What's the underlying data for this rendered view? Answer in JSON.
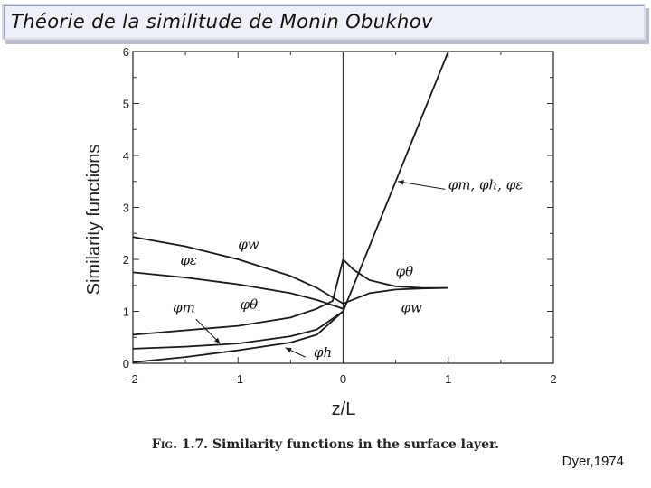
{
  "slide": {
    "title": "Théorie de la similitude de Monin Obukhov",
    "caption_label": "Fig. 1.7.",
    "caption_text": "Similarity functions in the surface layer.",
    "credit": "Dyer,1974"
  },
  "chart_data": {
    "type": "line",
    "title": "",
    "xlabel": "z/L",
    "ylabel": "Similarity functions",
    "xlim": [
      -2,
      2
    ],
    "ylim": [
      0,
      6
    ],
    "xticks": [
      "-2",
      "-1",
      "0",
      "1",
      "2"
    ],
    "yticks": [
      "0",
      "1",
      "2",
      "3",
      "4",
      "5",
      "6"
    ],
    "grid": false,
    "series": [
      {
        "name": "φm, φh, φε",
        "x": [
          0,
          0.25,
          0.5,
          0.75,
          1.0
        ],
        "y": [
          1.0,
          2.25,
          3.5,
          4.75,
          6.0
        ]
      },
      {
        "name": "φw",
        "x": [
          -2,
          -1.5,
          -1,
          -0.5,
          -0.25,
          0,
          0.25,
          0.5,
          0.75,
          1.0
        ],
        "y": [
          2.43,
          2.25,
          2.0,
          1.68,
          1.45,
          1.15,
          1.35,
          1.42,
          1.44,
          1.45
        ]
      },
      {
        "name": "φε",
        "x": [
          -2,
          -1.5,
          -1,
          -0.5,
          -0.25,
          0
        ],
        "y": [
          1.75,
          1.65,
          1.52,
          1.35,
          1.22,
          1.05
        ]
      },
      {
        "name": "φθ",
        "x": [
          -2,
          -1,
          -0.5,
          -0.25,
          -0.1,
          0,
          0.1,
          0.25,
          0.5,
          0.75,
          1.0
        ],
        "y": [
          0.55,
          0.72,
          0.88,
          1.05,
          1.2,
          2.0,
          1.8,
          1.6,
          1.48,
          1.45,
          1.45
        ]
      },
      {
        "name": "φm",
        "x": [
          -2,
          -1.5,
          -1,
          -0.5,
          -0.25,
          0
        ],
        "y": [
          0.28,
          0.32,
          0.38,
          0.52,
          0.65,
          1.0
        ]
      },
      {
        "name": "φh",
        "x": [
          -2,
          -1.5,
          -1,
          -0.5,
          -0.25,
          0
        ],
        "y": [
          0.02,
          0.12,
          0.25,
          0.4,
          0.55,
          1.0
        ]
      }
    ],
    "annotations": [
      {
        "text": "φm, φh, φε",
        "x": 1.0,
        "y": 3.35
      },
      {
        "text": "φw",
        "x": -1.0,
        "y": 2.2
      },
      {
        "text": "φε",
        "x": -1.55,
        "y": 1.9
      },
      {
        "text": "φm",
        "x": -1.62,
        "y": 0.98
      },
      {
        "text": "φθ",
        "x": -0.98,
        "y": 1.04
      },
      {
        "text": "φh",
        "x": -0.28,
        "y": 0.12
      },
      {
        "text": "φθ",
        "x": 0.5,
        "y": 1.68
      },
      {
        "text": "φw",
        "x": 0.55,
        "y": 0.98
      }
    ]
  }
}
